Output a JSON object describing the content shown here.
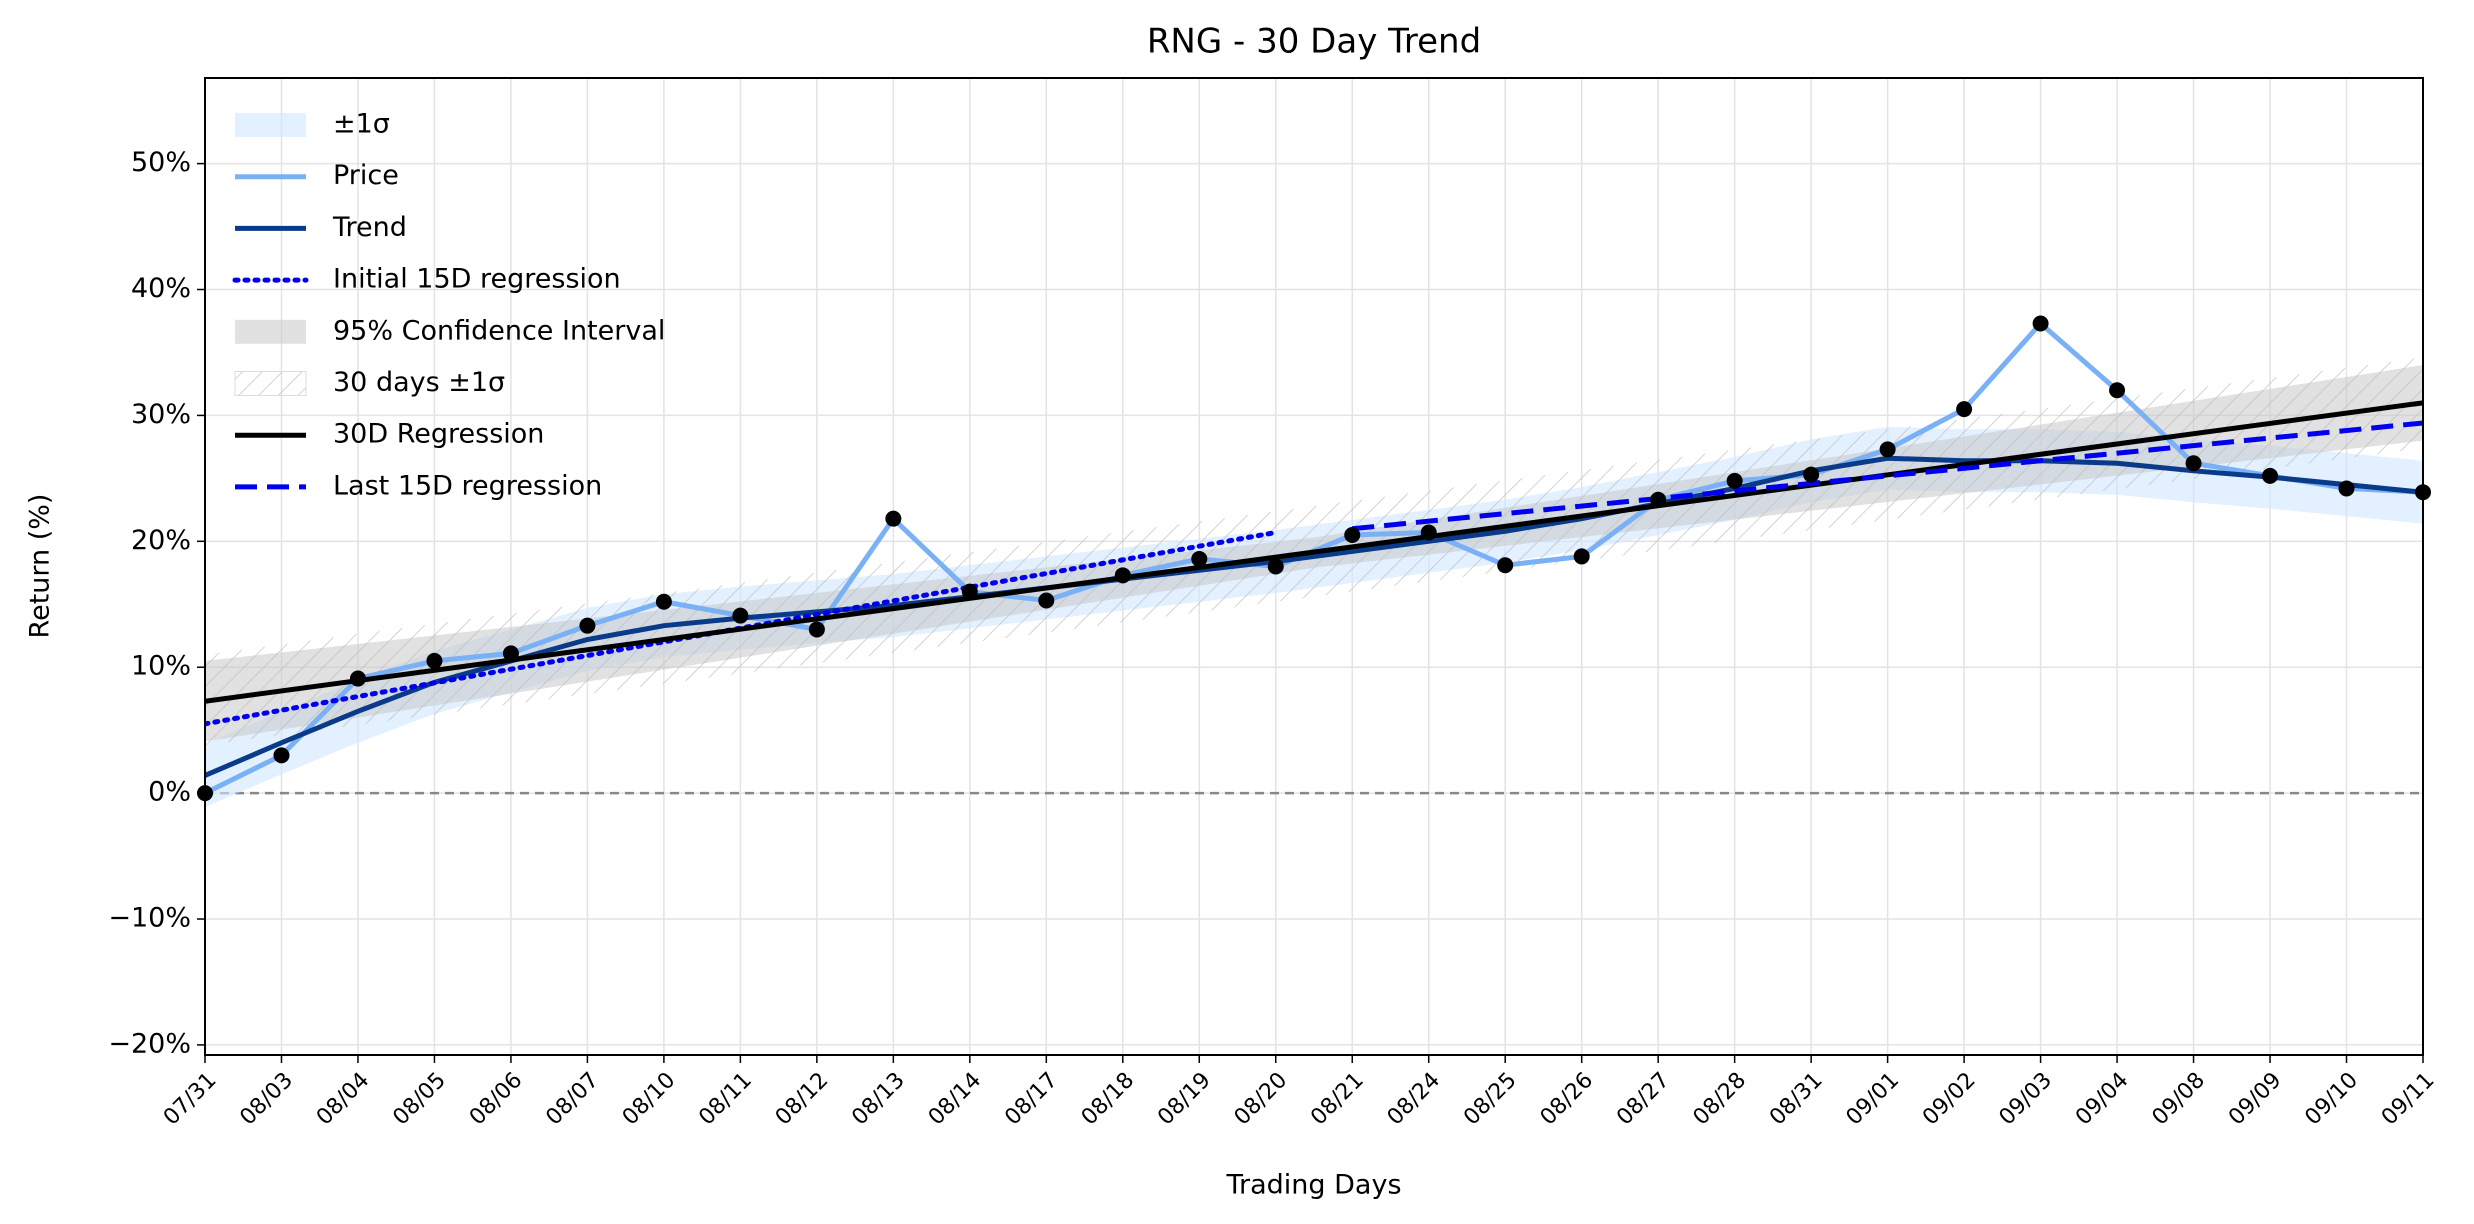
{
  "chart_data": {
    "type": "line",
    "title": "RNG - 30 Day Trend",
    "xlabel": "Trading Days",
    "ylabel": "Return (%)",
    "categories": [
      "07/31",
      "08/03",
      "08/04",
      "08/05",
      "08/06",
      "08/07",
      "08/10",
      "08/11",
      "08/12",
      "08/13",
      "08/14",
      "08/17",
      "08/18",
      "08/19",
      "08/20",
      "08/21",
      "08/24",
      "08/25",
      "08/26",
      "08/27",
      "08/28",
      "08/31",
      "09/01",
      "09/02",
      "09/03",
      "09/04",
      "09/08",
      "09/09",
      "09/10",
      "09/11"
    ],
    "ylim": [
      -20.8,
      56.8
    ],
    "yticks": [
      {
        "value": -20,
        "label": "−20%"
      },
      {
        "value": -10,
        "label": "−10%"
      },
      {
        "value": 0,
        "label": "0%"
      },
      {
        "value": 10,
        "label": "10%"
      },
      {
        "value": 20,
        "label": "20%"
      },
      {
        "value": 30,
        "label": "30%"
      },
      {
        "value": 40,
        "label": "40%"
      },
      {
        "value": 50,
        "label": "50%"
      }
    ],
    "grid": true,
    "legend": "upper left",
    "hline": 0,
    "series": [
      {
        "name": "±1σ",
        "kind": "band",
        "color": "#cfe6ff",
        "upper": [
          3.9,
          6.5,
          9.0,
          11.3,
          13.0,
          14.7,
          15.8,
          16.4,
          16.9,
          17.4,
          18.1,
          18.8,
          19.5,
          20.2,
          20.9,
          21.7,
          22.5,
          23.3,
          24.3,
          25.5,
          26.7,
          28.1,
          29.1,
          28.9,
          28.9,
          28.7,
          28.1,
          27.6,
          27.0,
          26.4
        ],
        "lower": [
          -1.1,
          1.5,
          4.0,
          6.3,
          8.0,
          9.7,
          10.8,
          11.4,
          11.9,
          12.4,
          13.1,
          13.8,
          14.5,
          15.2,
          15.9,
          16.7,
          17.5,
          18.3,
          19.3,
          20.5,
          21.7,
          23.1,
          24.1,
          23.9,
          23.9,
          23.7,
          23.1,
          22.6,
          22.0,
          21.4
        ]
      },
      {
        "name": "Price",
        "kind": "line",
        "color": "#7ab0f5",
        "marker_color": "#000000",
        "values": [
          0,
          3.0,
          9.1,
          10.5,
          11.1,
          13.3,
          15.2,
          14.1,
          13.0,
          21.8,
          16.0,
          15.3,
          17.3,
          18.6,
          18.0,
          20.5,
          20.7,
          18.1,
          18.8,
          23.3,
          24.8,
          25.3,
          27.3,
          30.5,
          37.3,
          32.0,
          26.2,
          25.2,
          24.2,
          23.9
        ]
      },
      {
        "name": "Trend",
        "kind": "line",
        "color": "#0a3a8a",
        "values": [
          1.4,
          4.0,
          6.5,
          8.8,
          10.5,
          12.2,
          13.3,
          13.9,
          14.4,
          14.9,
          15.6,
          16.3,
          17.0,
          17.7,
          18.4,
          19.2,
          20.0,
          20.8,
          21.8,
          23.0,
          24.2,
          25.6,
          26.6,
          26.4,
          26.4,
          26.2,
          25.6,
          25.1,
          24.5,
          23.9
        ]
      },
      {
        "name": "Initial 15D regression",
        "kind": "line",
        "style": "dotted",
        "color": "#0000ee",
        "x": [
          0,
          14
        ],
        "values": [
          5.5,
          20.7
        ]
      },
      {
        "name": "95% Confidence Interval",
        "kind": "band",
        "color": "#c8c8c8",
        "x": [
          0,
          14.5,
          29
        ],
        "upper": [
          10.5,
          20.3,
          34.0
        ],
        "lower": [
          4.1,
          17.9,
          28.0
        ]
      },
      {
        "name": "30 days ±1σ",
        "kind": "band",
        "style": "hatch",
        "color": "#d8d8d8",
        "x": [
          0,
          29
        ],
        "upper": [
          11.0,
          34.6
        ],
        "lower": [
          3.8,
          27.4
        ]
      },
      {
        "name": "30D Regression",
        "kind": "line",
        "color": "#000000",
        "x": [
          0,
          29
        ],
        "values": [
          7.3,
          31.0
        ]
      },
      {
        "name": "Last 15D regression",
        "kind": "line",
        "style": "dashed",
        "color": "#0000ee",
        "x": [
          15,
          29
        ],
        "values": [
          21.0,
          29.4
        ]
      }
    ]
  }
}
